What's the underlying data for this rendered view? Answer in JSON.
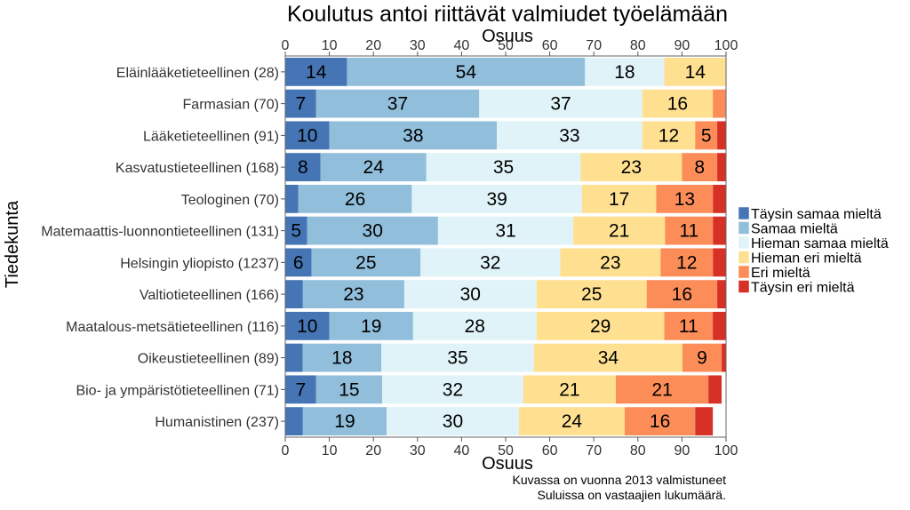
{
  "chart_data": {
    "type": "bar",
    "orientation": "horizontal",
    "stacked": true,
    "title": "Koulutus antoi riittävät valmiudet työelämään",
    "xlabel": "Osuus",
    "ylabel": "Tiedekunta",
    "xlim": [
      0,
      100
    ],
    "xticks": [
      0,
      10,
      20,
      30,
      40,
      50,
      60,
      70,
      80,
      90,
      100
    ],
    "grid": false,
    "legend_position": "right",
    "categories": [
      "Eläinlääketieteellinen (28)",
      "Farmasian (70)",
      "Lääketieteellinen (91)",
      "Kasvatustieteellinen (168)",
      "Teologinen (70)",
      "Matemaattis-luonnontieteellinen (131)",
      "Helsingin yliopisto (1237)",
      "Valtiotieteellinen (166)",
      "Maatalous-metsätieteellinen (116)",
      "Oikeustieteellinen (89)",
      "Bio- ja ympäristötieteellinen (71)",
      "Humanistinen (237)"
    ],
    "series": [
      {
        "name": "Täysin samaa mieltä",
        "color": "#4575b4",
        "values": [
          14,
          7,
          10,
          8,
          3,
          5,
          6,
          4,
          10,
          4,
          7,
          4
        ]
      },
      {
        "name": "Samaa mieltä",
        "color": "#91bfdb",
        "values": [
          54,
          37,
          38,
          24,
          26,
          30,
          25,
          23,
          19,
          18,
          15,
          19
        ]
      },
      {
        "name": "Hieman samaa mieltä",
        "color": "#e0f3f8",
        "values": [
          18,
          37,
          33,
          35,
          39,
          31,
          32,
          30,
          28,
          35,
          32,
          30
        ]
      },
      {
        "name": "Hieman eri mieltä",
        "color": "#fee090",
        "values": [
          14,
          16,
          12,
          23,
          17,
          21,
          23,
          25,
          29,
          34,
          21,
          24
        ]
      },
      {
        "name": "Eri mieltä",
        "color": "#fc8d59",
        "values": [
          0,
          3,
          5,
          8,
          13,
          11,
          12,
          16,
          11,
          9,
          21,
          16
        ]
      },
      {
        "name": "Täysin eri mieltä",
        "color": "#d73027",
        "values": [
          0,
          0,
          2,
          2,
          3,
          3,
          3,
          2,
          3,
          1,
          3,
          4
        ]
      }
    ],
    "label_min": 5,
    "annotations": [
      "Kuvassa on vuonna 2013 valmistuneet",
      "Suluissa on vastaajien lukumäärä."
    ]
  }
}
